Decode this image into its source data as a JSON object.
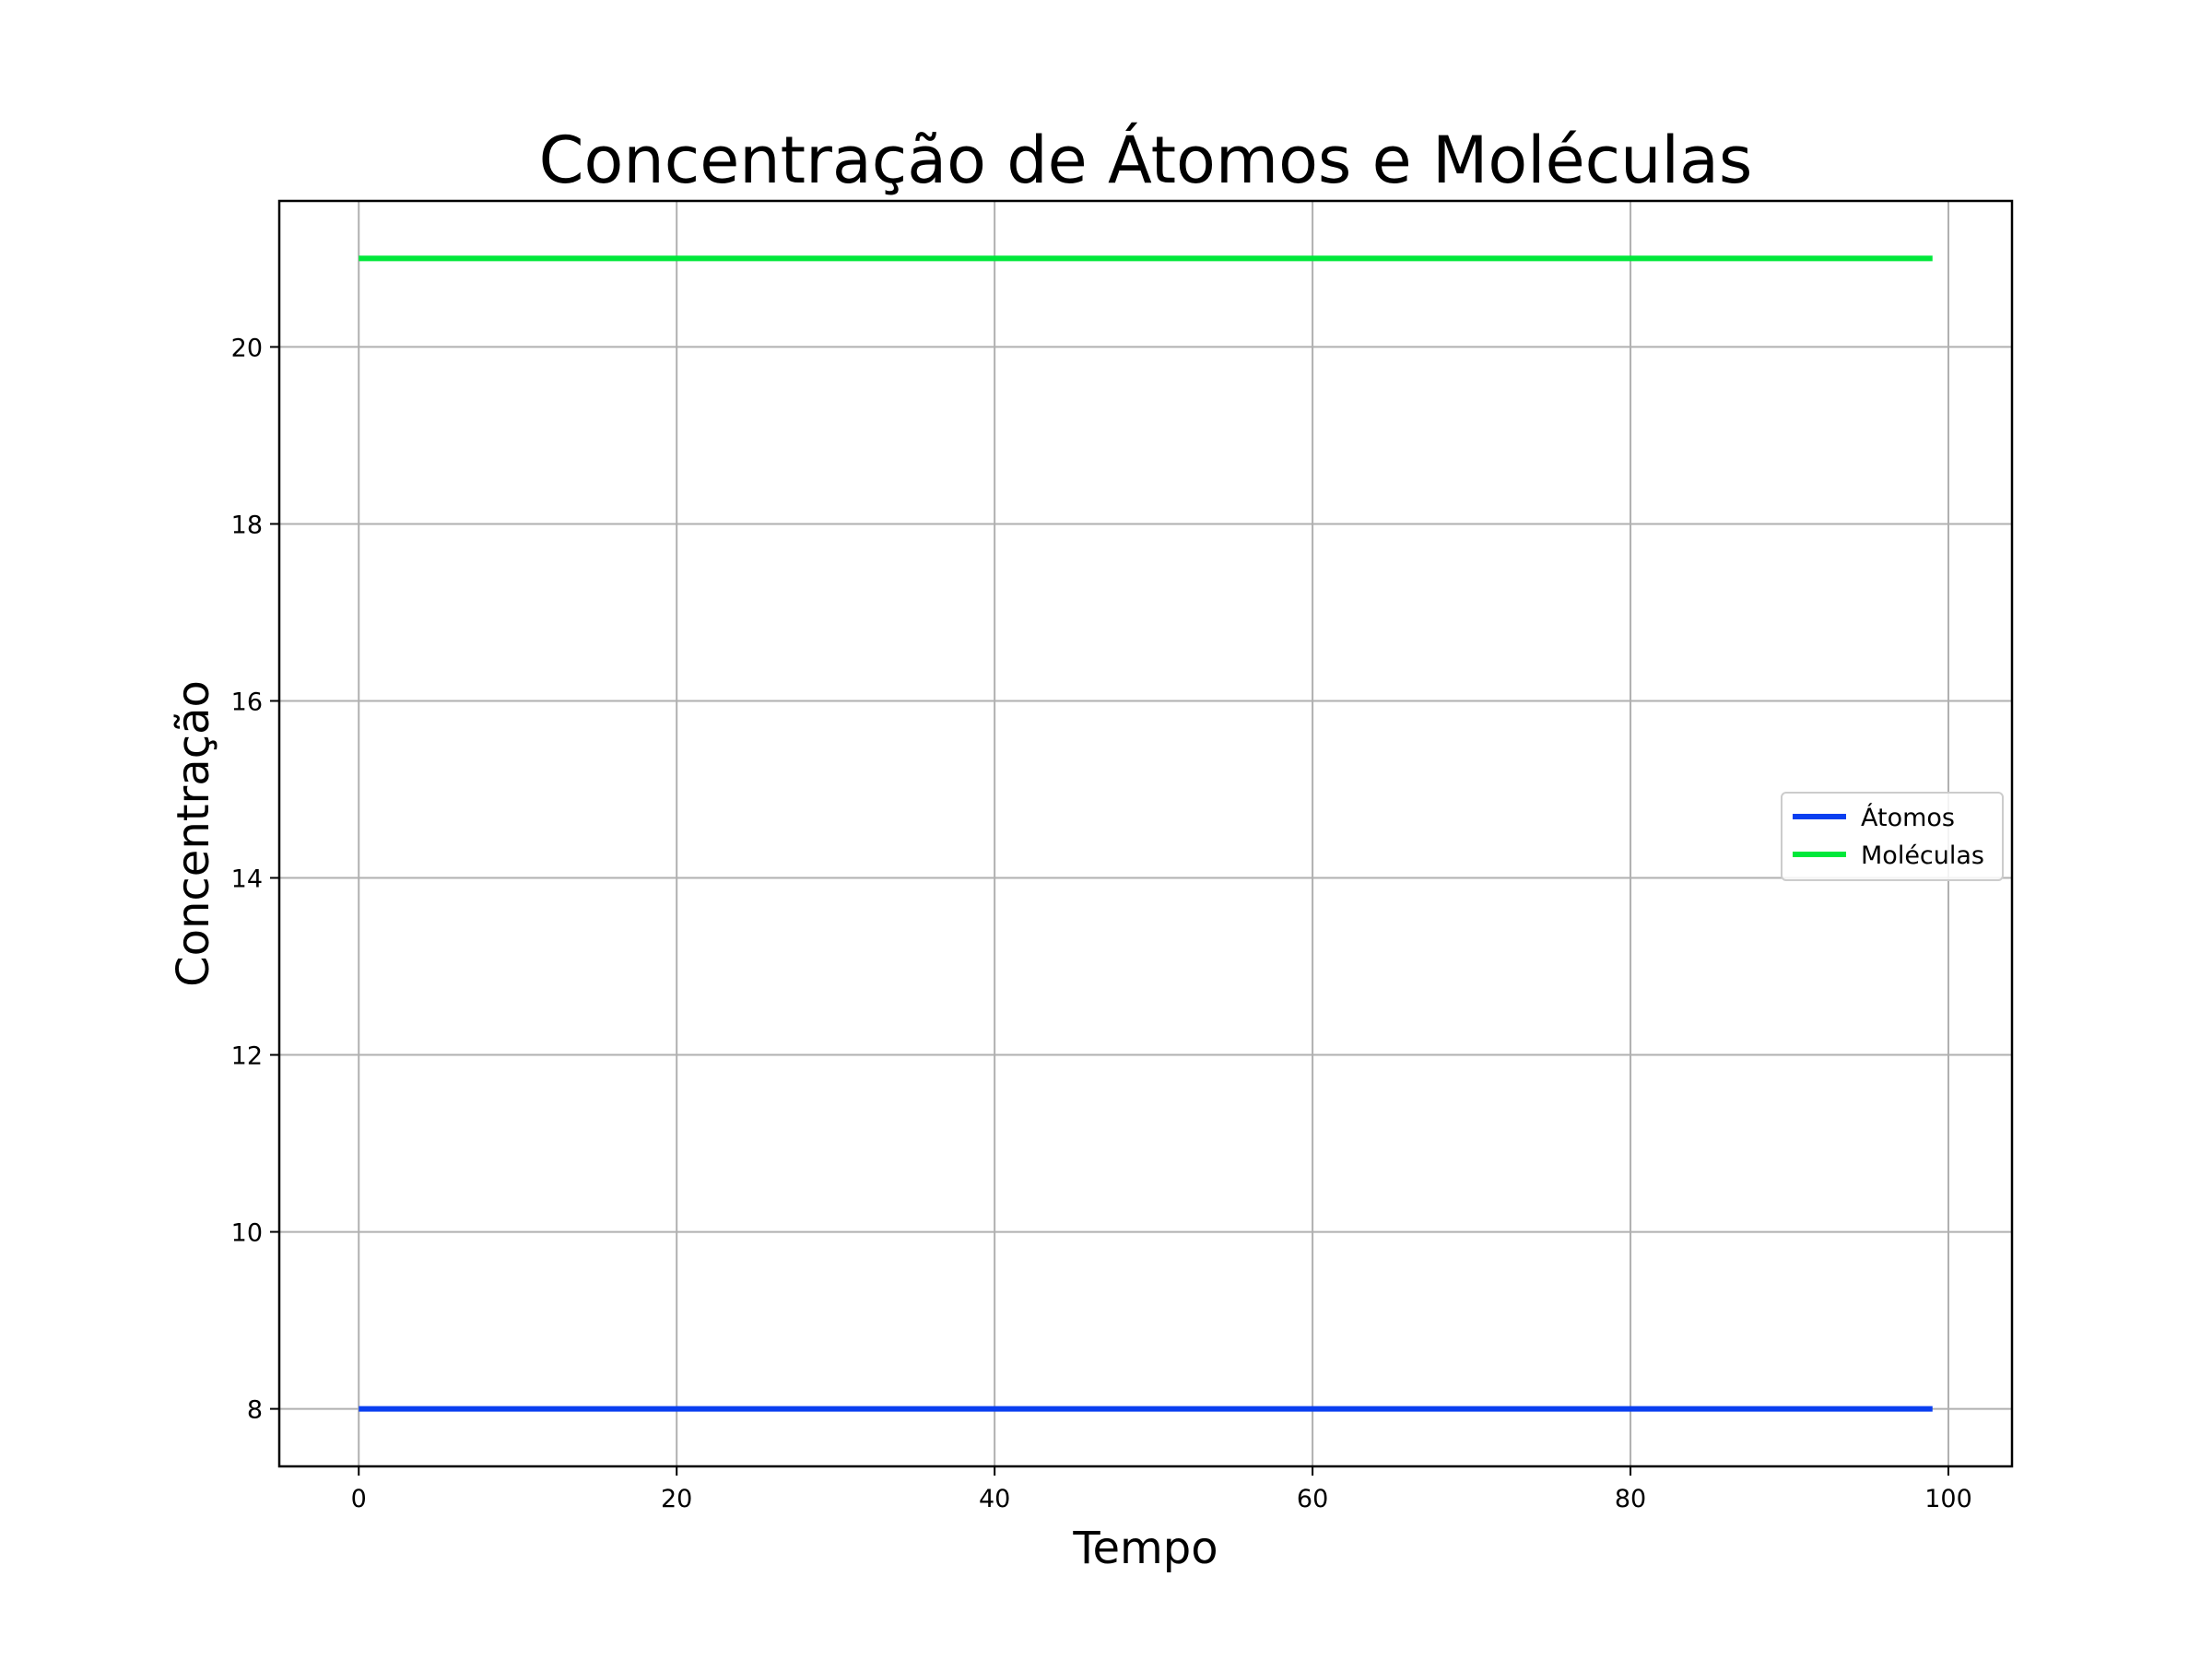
{
  "chart_data": {
    "type": "line",
    "title": "Concentração de Átomos e Moléculas",
    "xlabel": "Tempo",
    "ylabel": "Concentração",
    "xlim": [
      -5,
      104
    ],
    "ylim": [
      7.35,
      21.65
    ],
    "x_ticks": [
      0,
      20,
      40,
      60,
      80,
      100
    ],
    "y_ticks": [
      8,
      10,
      12,
      14,
      16,
      18,
      20
    ],
    "grid": true,
    "legend_position": "center-right",
    "series": [
      {
        "name": "Átomos",
        "color": "#0a3ff0",
        "x": [
          0,
          99
        ],
        "y": [
          8,
          8
        ]
      },
      {
        "name": "Moléculas",
        "color": "#00e83a",
        "x": [
          0,
          99
        ],
        "y": [
          21,
          21
        ]
      }
    ]
  }
}
